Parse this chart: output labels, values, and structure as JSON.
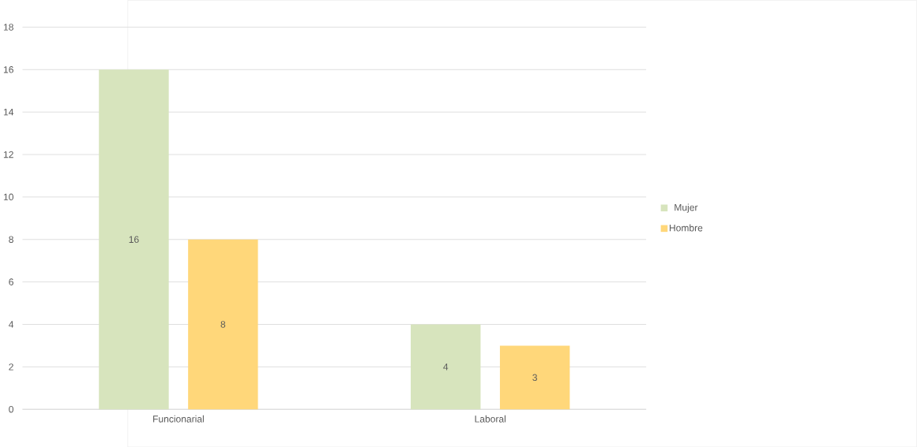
{
  "chart_data": {
    "type": "bar",
    "categories": [
      "Funcionarial",
      "Laboral"
    ],
    "series": [
      {
        "name": "Mujer",
        "color": "#d7e4bd",
        "values": [
          16,
          4
        ]
      },
      {
        "name": "Hombre",
        "color": "#ffd77a",
        "values": [
          8,
          3
        ]
      }
    ],
    "ylim": [
      0,
      18
    ],
    "yticks": [
      0,
      2,
      4,
      6,
      8,
      10,
      12,
      14,
      16,
      18
    ],
    "grid": "y",
    "legend": "right",
    "data_labels": true
  }
}
